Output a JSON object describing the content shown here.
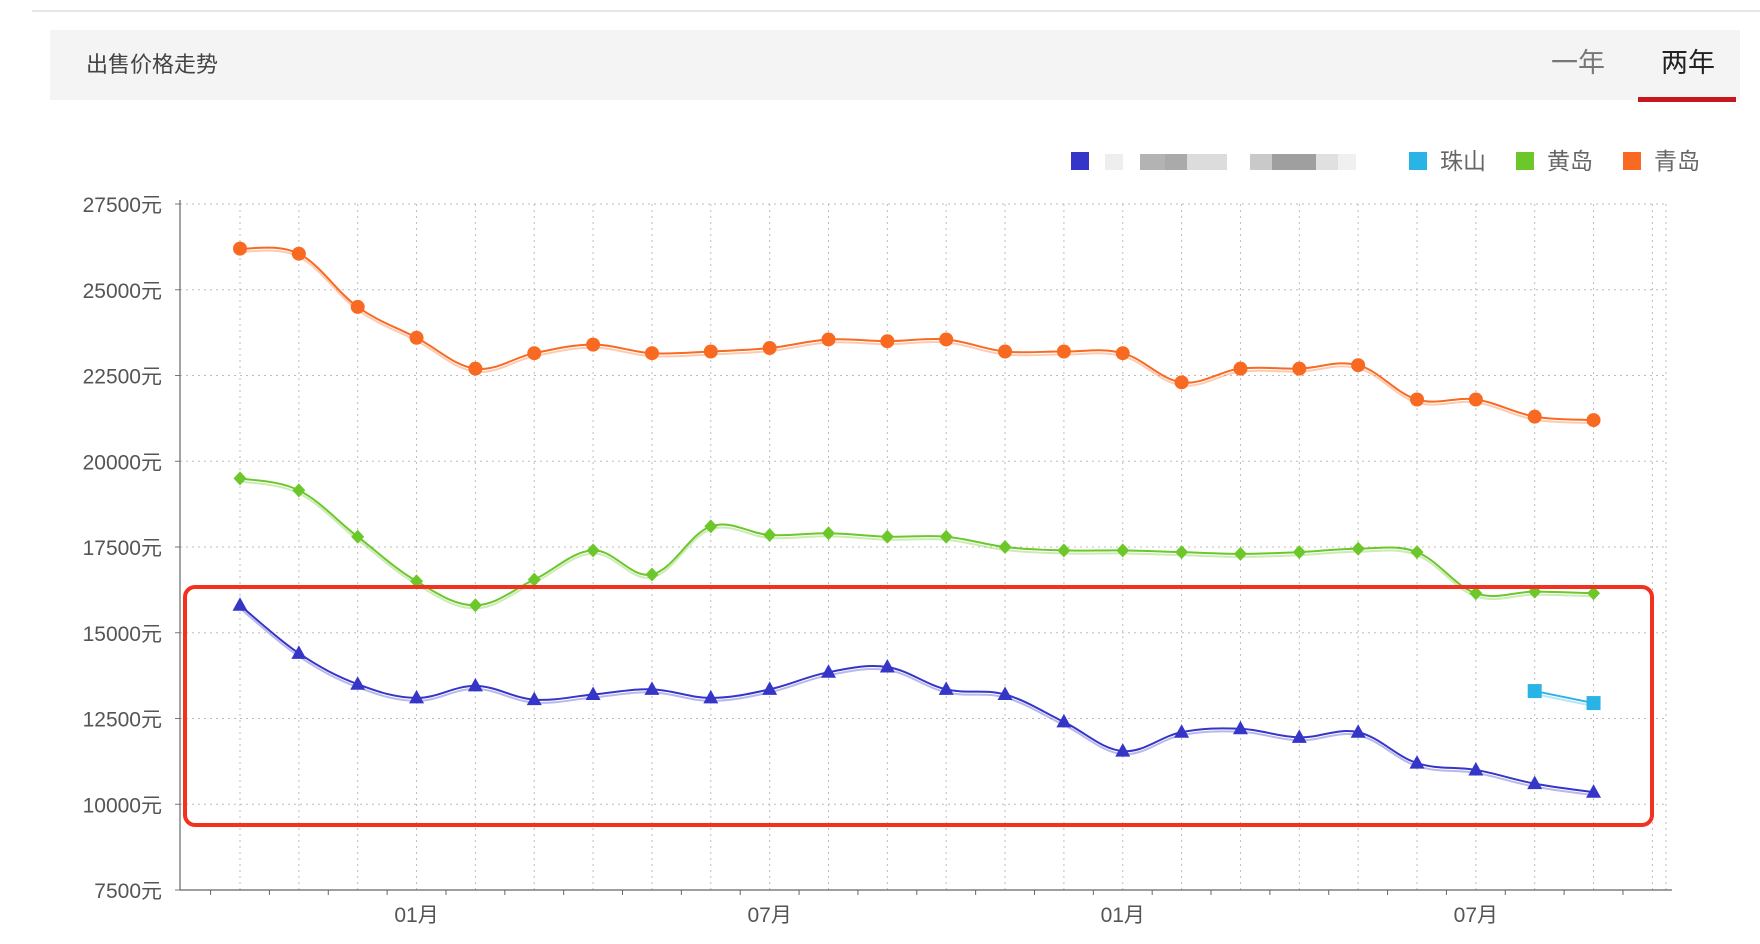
{
  "header": {
    "title": "出售价格走势",
    "tabs": [
      {
        "label": "一年",
        "active": false
      },
      {
        "label": "两年",
        "active": true
      }
    ]
  },
  "colors": {
    "header_bg": "#f4f4f4",
    "active_tab_underline": "#c8161e",
    "highlight_box": "#f2311f"
  },
  "chart_data": {
    "type": "line",
    "title": "",
    "xlabel": "",
    "ylabel": "",
    "ylim": [
      7500,
      27500
    ],
    "yticks": [
      "27500元",
      "25000元",
      "22500元",
      "20000元",
      "17500元",
      "15000元",
      "12500元",
      "10000元",
      "7500元"
    ],
    "xtick_labels": [
      {
        "index": 3,
        "label": "01月"
      },
      {
        "index": 9,
        "label": "07月"
      },
      {
        "index": 15,
        "label": "01月"
      },
      {
        "index": 21,
        "label": "07月"
      }
    ],
    "legend_position": "top-right",
    "grid": true,
    "series": [
      {
        "name": "青岛",
        "color": "#f86a21",
        "marker": "circle",
        "x": [
          1,
          2,
          3,
          4,
          5,
          6,
          7,
          8,
          9,
          10,
          11,
          12,
          13,
          14,
          15,
          16,
          17,
          18,
          19,
          20,
          21,
          22,
          23,
          24
        ],
        "values": [
          26200,
          26050,
          24500,
          23600,
          22700,
          23150,
          23400,
          23150,
          23200,
          23300,
          23550,
          23500,
          23550,
          23200,
          23200,
          23150,
          22300,
          22700,
          22700,
          22800,
          21800,
          21800,
          21300,
          21200
        ]
      },
      {
        "name": "黄岛",
        "color": "#6cc72b",
        "marker": "diamond",
        "x": [
          1,
          2,
          3,
          4,
          5,
          6,
          7,
          8,
          9,
          10,
          11,
          12,
          13,
          14,
          15,
          16,
          17,
          18,
          19,
          20,
          21,
          22,
          23,
          24
        ],
        "values": [
          19500,
          19150,
          17800,
          16500,
          15800,
          16550,
          17400,
          16700,
          18100,
          17850,
          17900,
          17800,
          17800,
          17500,
          17400,
          17400,
          17350,
          17300,
          17350,
          17450,
          17350,
          16150,
          16200,
          16150
        ]
      },
      {
        "name": "",
        "color": "#3535c8",
        "marker": "triangle",
        "x": [
          1,
          2,
          3,
          4,
          5,
          6,
          7,
          8,
          9,
          10,
          11,
          12,
          13,
          14,
          15,
          16,
          17,
          18,
          19,
          20,
          21,
          22,
          23,
          24
        ],
        "values": [
          15800,
          14400,
          13500,
          13100,
          13450,
          13050,
          13200,
          13350,
          13100,
          13350,
          13850,
          14000,
          13350,
          13200,
          12400,
          11550,
          12100,
          12200,
          11950,
          12100,
          11200,
          11000,
          10600,
          10350
        ]
      },
      {
        "name": "珠山",
        "color": "#2ab4e6",
        "marker": "square",
        "x": [
          23,
          24
        ],
        "values": [
          13300,
          12950
        ]
      }
    ],
    "legend": [
      {
        "name": "",
        "color": "#3535c8"
      },
      {
        "name": "珠山",
        "color": "#2ab4e6"
      },
      {
        "name": "黄岛",
        "color": "#6cc72b"
      },
      {
        "name": "青岛",
        "color": "#f86a21"
      }
    ]
  }
}
